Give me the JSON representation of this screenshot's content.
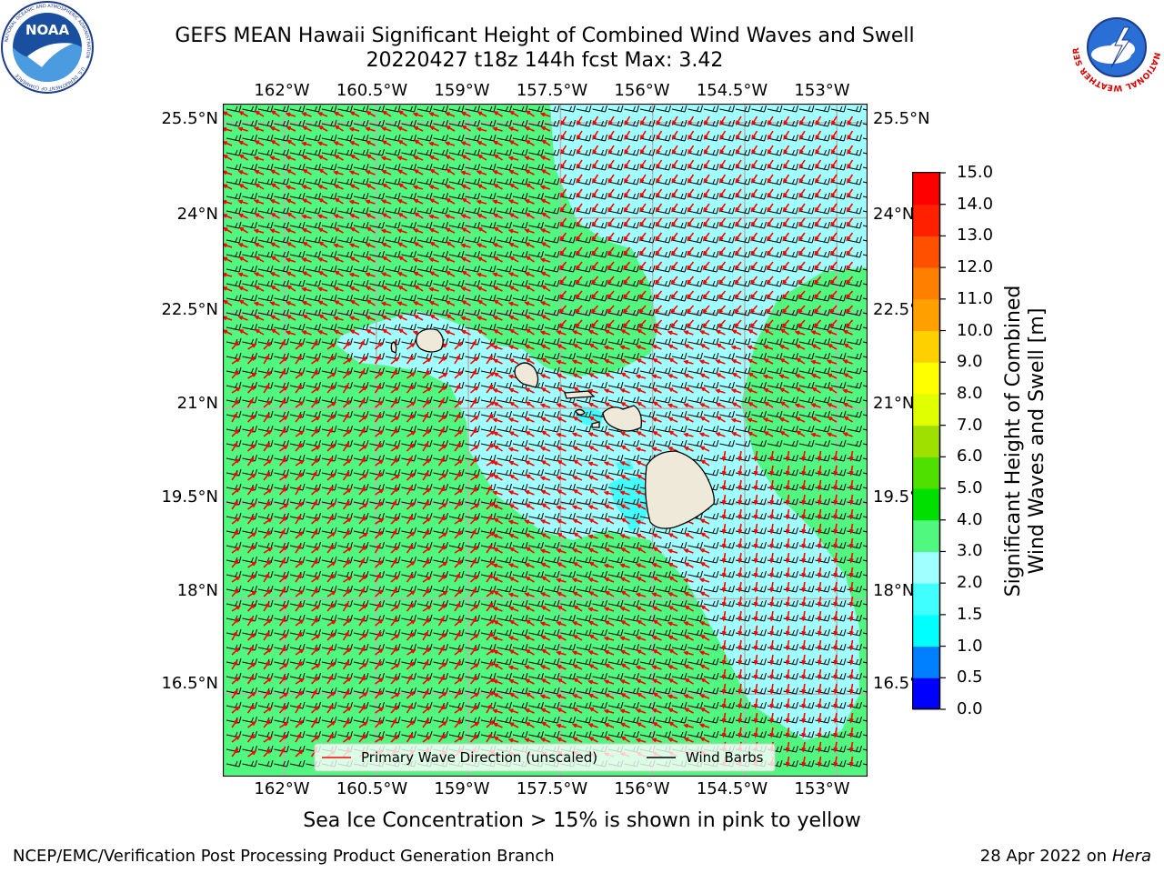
{
  "header": {
    "title_line1": "GEFS MEAN Hawaii Significant Height of Combined Wind Waves and Swell",
    "title_line2": "20220427 t18z 144h fcst   Max: 3.42"
  },
  "logos": {
    "left": {
      "icon": "noaa-logo",
      "center_text": "NOAA",
      "ring_text": "NATIONAL OCEANIC AND ATMOSPHERIC ADMINISTRATION",
      "bottom_text": "U.S. DEPARTMENT OF COMMERCE"
    },
    "right": {
      "icon": "nws-logo",
      "ring_text": "NATIONAL WEATHER SERVICE"
    }
  },
  "map": {
    "lon_labels": [
      "162°W",
      "160.5°W",
      "159°W",
      "157.5°W",
      "156°W",
      "154.5°W",
      "153°W"
    ],
    "lat_labels": [
      "25.5°N",
      "24°N",
      "22.5°N",
      "21°N",
      "19.5°N",
      "18°N",
      "16.5°N"
    ],
    "lon_range": [
      -163,
      -152.5
    ],
    "lat_range": [
      15.2,
      25.8
    ],
    "legend": {
      "wave_label": "Primary Wave Direction (unscaled)",
      "barb_label": "Wind Barbs",
      "wave_color": "#ff0000",
      "barb_color": "#000000"
    }
  },
  "colorbar": {
    "label_line1": "Significant Height of Combined",
    "label_line2": "Wind Waves and Swell [m]",
    "ticks": [
      "0.0",
      "0.5",
      "1.0",
      "1.5",
      "2.0",
      "3.0",
      "4.0",
      "5.0",
      "6.0",
      "7.0",
      "8.0",
      "9.0",
      "10.0",
      "11.0",
      "12.0",
      "13.0",
      "14.0",
      "15.0"
    ],
    "colors": [
      "#0000ff",
      "#0080ff",
      "#00ffff",
      "#40ffff",
      "#a0ffff",
      "#50f880",
      "#00e000",
      "#50e000",
      "#a0e000",
      "#e0ff00",
      "#ffff00",
      "#ffd000",
      "#ffa000",
      "#ff8000",
      "#ff5000",
      "#ff2000",
      "#ff0000"
    ]
  },
  "colors": {
    "ocean_3to4m": "#50f880",
    "ocean_2to3m": "#a0ffff",
    "ocean_1_5to2m": "#40ffff",
    "land": "#efe9da"
  },
  "footer": {
    "note": "Sea Ice Concentration > 15% is shown in pink to yellow",
    "left": "NCEP/EMC/Verification Post Processing Product Generation Branch",
    "right_date": "28 Apr 2022 on ",
    "right_host": "Hera"
  }
}
